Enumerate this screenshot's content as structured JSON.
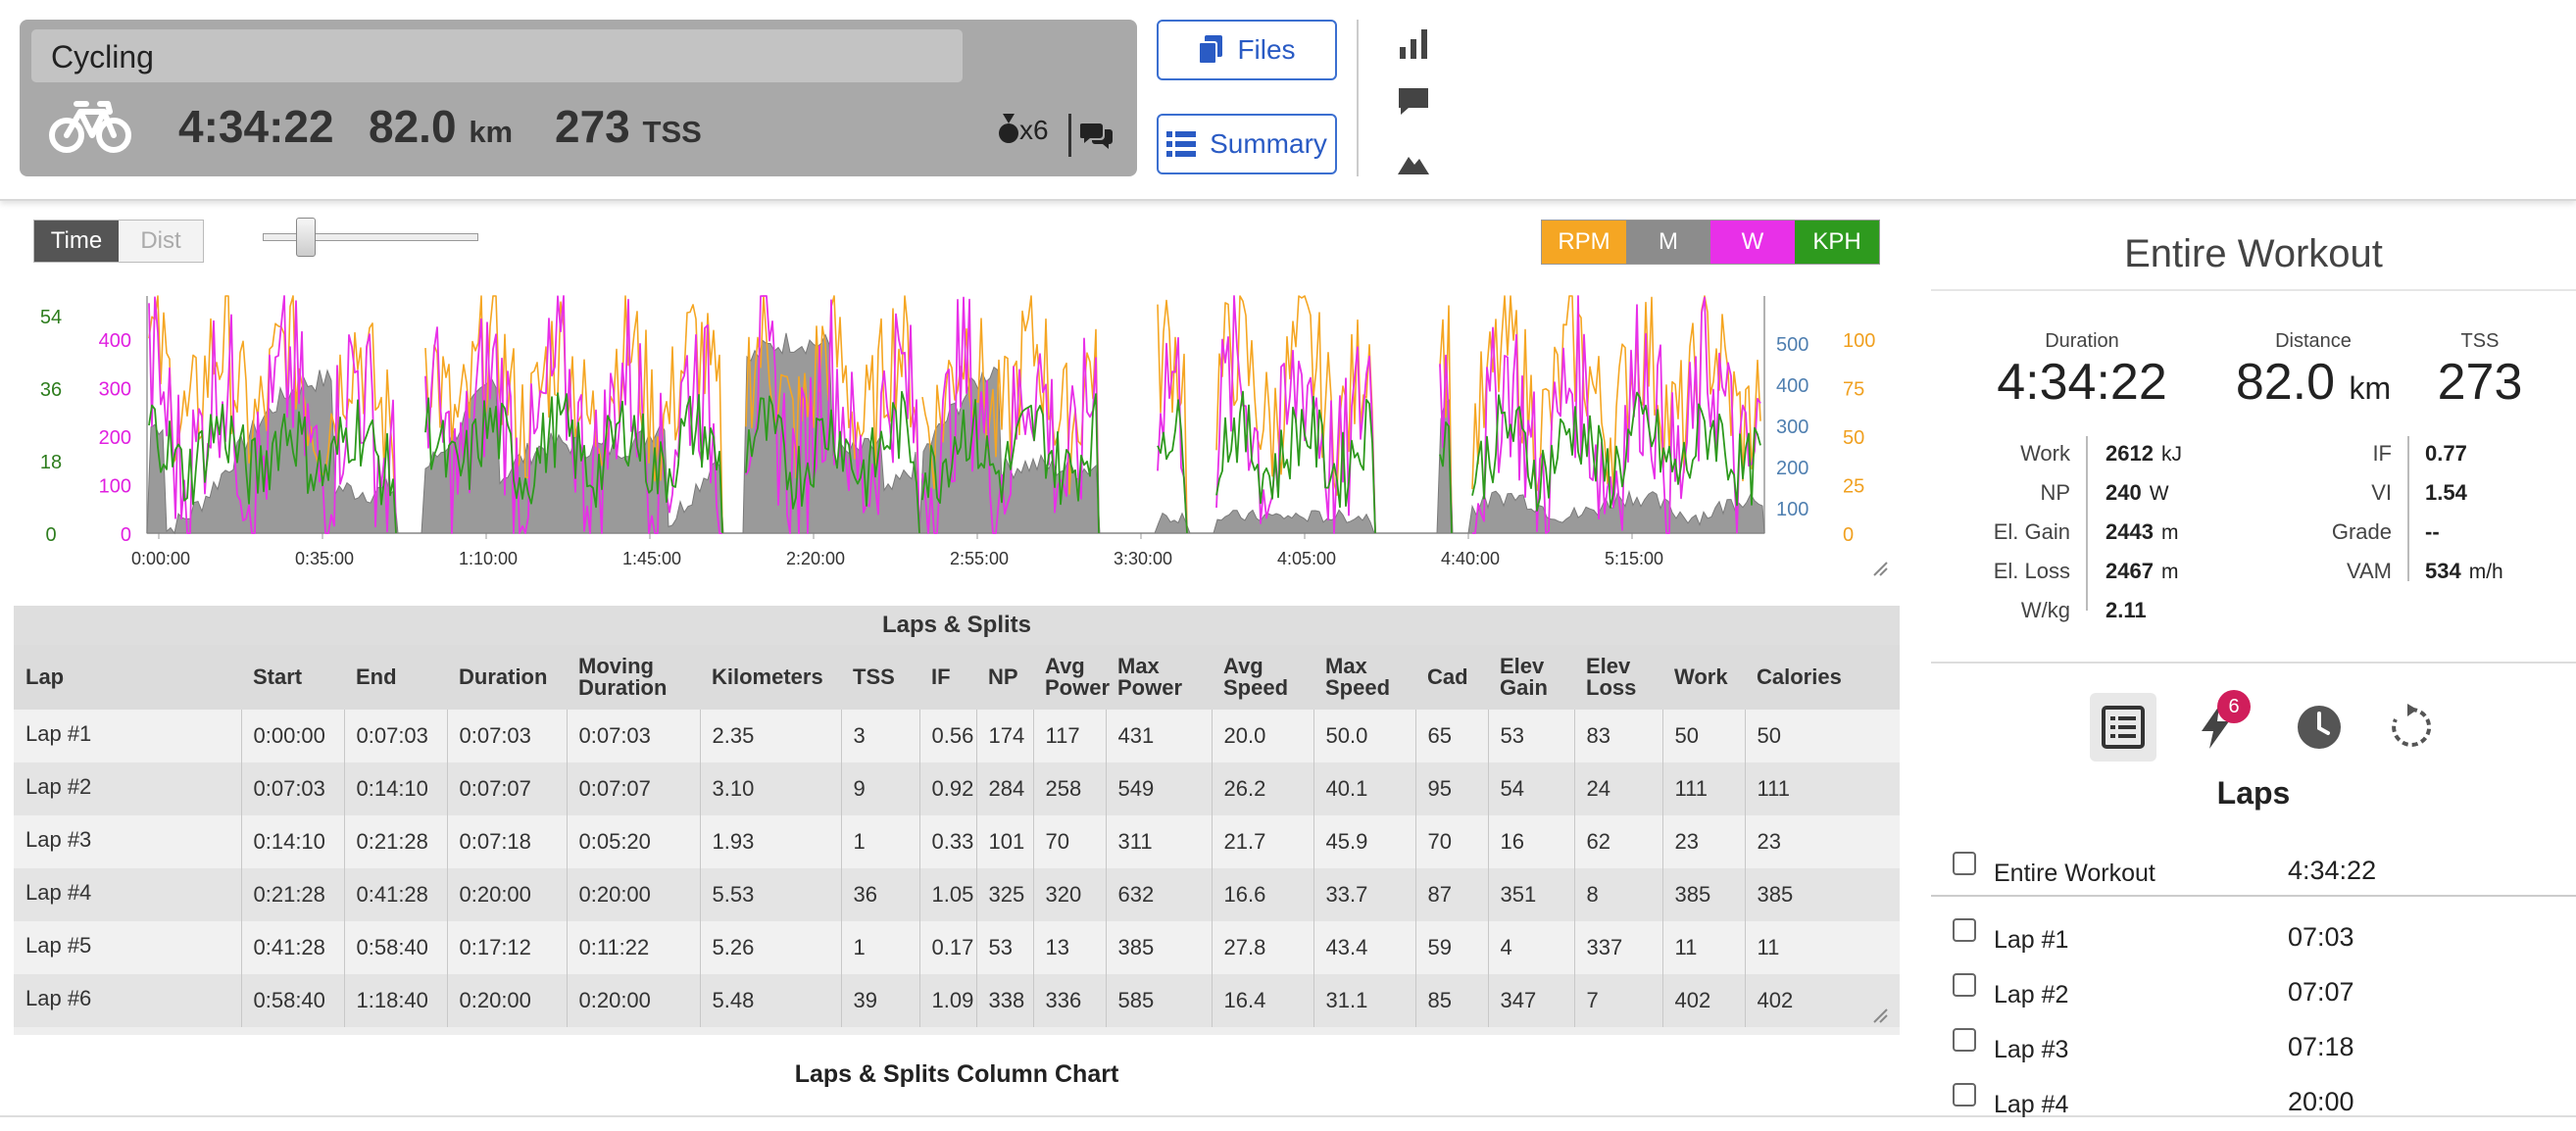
{
  "workout": {
    "title": "Cycling",
    "duration": "4:34:22",
    "distance": "82.0",
    "distance_unit": "km",
    "tss": "273",
    "tss_unit": "TSS",
    "medals": "x6"
  },
  "buttons": {
    "files": "Files",
    "summary": "Summary"
  },
  "chart_controls": {
    "time_label": "Time",
    "dist_label": "Dist",
    "legend": [
      {
        "label": "RPM",
        "color": "#f5a623"
      },
      {
        "label": "M",
        "color": "#8c8c8c"
      },
      {
        "label": "W",
        "color": "#e830e8"
      },
      {
        "label": "KPH",
        "color": "#2e9a1e"
      }
    ]
  },
  "chart_data": {
    "type": "line",
    "x_ticks": [
      "0:00:00",
      "0:35:00",
      "1:10:00",
      "1:45:00",
      "2:20:00",
      "2:55:00",
      "3:30:00",
      "4:05:00",
      "4:40:00",
      "5:15:00"
    ],
    "axes": {
      "speed_kph": {
        "ticks": [
          0,
          18,
          36,
          54
        ],
        "color": "#2e7d1e"
      },
      "power_w": {
        "ticks": [
          0,
          100,
          200,
          300,
          400
        ],
        "color": "#e020e0"
      },
      "elevation_m": {
        "ticks": [
          100,
          200,
          300,
          400,
          500
        ],
        "color": "#4f7fb0"
      },
      "cadence_rpm": {
        "ticks": [
          0,
          25,
          50,
          75,
          100
        ],
        "color": "#f0a020"
      }
    },
    "series": [
      {
        "name": "RPM",
        "color": "#f5a623"
      },
      {
        "name": "M",
        "color": "#8c8c8c"
      },
      {
        "name": "W",
        "color": "#e830e8"
      },
      {
        "name": "KPH",
        "color": "#2e9a1e"
      }
    ]
  },
  "laps_table": {
    "title": "Laps & Splits",
    "headers": [
      [
        "Lap"
      ],
      [
        "Start"
      ],
      [
        "End"
      ],
      [
        "Duration"
      ],
      [
        "Moving",
        "Duration"
      ],
      [
        "Kilometers"
      ],
      [
        "TSS"
      ],
      [
        "IF"
      ],
      [
        "NP"
      ],
      [
        "Avg",
        "Power"
      ],
      [
        "Max",
        "Power"
      ],
      [
        "Avg",
        "Speed"
      ],
      [
        "Max",
        "Speed"
      ],
      [
        "Cad"
      ],
      [
        "Elev",
        "Gain"
      ],
      [
        "Elev",
        "Loss"
      ],
      [
        "Work"
      ],
      [
        "Calories"
      ]
    ],
    "rows": [
      [
        "Lap #1",
        "0:00:00",
        "0:07:03",
        "0:07:03",
        "0:07:03",
        "2.35",
        "3",
        "0.56",
        "174",
        "117",
        "431",
        "20.0",
        "50.0",
        "65",
        "53",
        "83",
        "50",
        "50"
      ],
      [
        "Lap #2",
        "0:07:03",
        "0:14:10",
        "0:07:07",
        "0:07:07",
        "3.10",
        "9",
        "0.92",
        "284",
        "258",
        "549",
        "26.2",
        "40.1",
        "95",
        "54",
        "24",
        "111",
        "111"
      ],
      [
        "Lap #3",
        "0:14:10",
        "0:21:28",
        "0:07:18",
        "0:05:20",
        "1.93",
        "1",
        "0.33",
        "101",
        "70",
        "311",
        "21.7",
        "45.9",
        "70",
        "16",
        "62",
        "23",
        "23"
      ],
      [
        "Lap #4",
        "0:21:28",
        "0:41:28",
        "0:20:00",
        "0:20:00",
        "5.53",
        "36",
        "1.05",
        "325",
        "320",
        "632",
        "16.6",
        "33.7",
        "87",
        "351",
        "8",
        "385",
        "385"
      ],
      [
        "Lap #5",
        "0:41:28",
        "0:58:40",
        "0:17:12",
        "0:11:22",
        "5.26",
        "1",
        "0.17",
        "53",
        "13",
        "385",
        "27.8",
        "43.4",
        "59",
        "4",
        "337",
        "11",
        "11"
      ],
      [
        "Lap #6",
        "0:58:40",
        "1:18:40",
        "0:20:00",
        "0:20:00",
        "5.48",
        "39",
        "1.09",
        "338",
        "336",
        "585",
        "16.4",
        "31.1",
        "85",
        "347",
        "7",
        "402",
        "402"
      ]
    ]
  },
  "column_chart_title": "Laps & Splits Column Chart",
  "entire_workout": {
    "title": "Entire Workout",
    "duration_label": "Duration",
    "duration": "4:34:22",
    "distance_label": "Distance",
    "distance": "82.0",
    "distance_unit": "km",
    "tss_label": "TSS",
    "tss": "273",
    "left_stats": [
      {
        "label": "Work",
        "value": "2612",
        "unit": "kJ"
      },
      {
        "label": "NP",
        "value": "240",
        "unit": "W"
      },
      {
        "label": "El. Gain",
        "value": "2443",
        "unit": "m"
      },
      {
        "label": "El. Loss",
        "value": "2467",
        "unit": "m"
      },
      {
        "label": "W/kg",
        "value": "2.11",
        "unit": ""
      }
    ],
    "right_stats": [
      {
        "label": "IF",
        "value": "0.77",
        "unit": ""
      },
      {
        "label": "VI",
        "value": "1.54",
        "unit": ""
      },
      {
        "label": "Grade",
        "value": "--",
        "unit": ""
      },
      {
        "label": "VAM",
        "value": "534",
        "unit": "m/h"
      }
    ]
  },
  "laps_panel": {
    "title": "Laps",
    "badge": "6",
    "items": [
      {
        "name": "Entire Workout",
        "time": "4:34:22"
      },
      {
        "name": "Lap #1",
        "time": "07:03"
      },
      {
        "name": "Lap #2",
        "time": "07:07"
      },
      {
        "name": "Lap #3",
        "time": "07:18"
      },
      {
        "name": "Lap #4",
        "time": "20:00"
      }
    ]
  }
}
